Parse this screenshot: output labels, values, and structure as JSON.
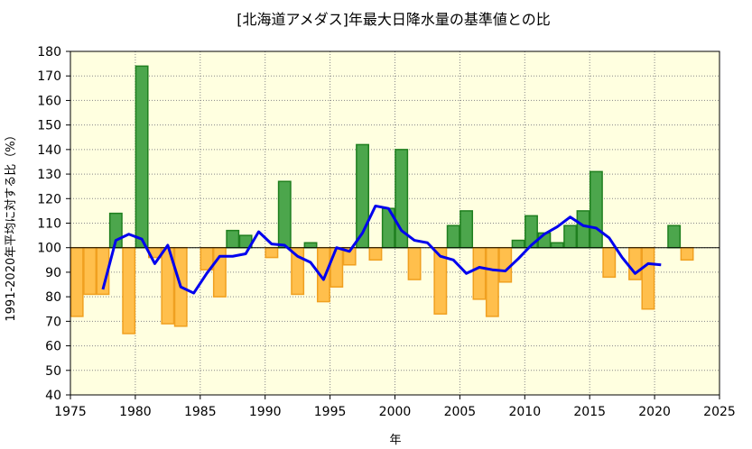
{
  "chart_data": {
    "type": "bar",
    "title": "[北海道アメダス]年最大日降水量の基準値との比",
    "xlabel": "年",
    "ylabel": "1991-2020年平均に対する比（%）",
    "xlim": [
      1975,
      2025
    ],
    "ylim": [
      40,
      180
    ],
    "baseline": 100,
    "x_ticks": [
      1975,
      1980,
      1985,
      1990,
      1995,
      2000,
      2005,
      2010,
      2015,
      2020,
      2025
    ],
    "y_ticks": [
      40,
      50,
      60,
      70,
      80,
      90,
      100,
      110,
      120,
      130,
      140,
      150,
      160,
      170,
      180
    ],
    "grid": true,
    "legend": "none",
    "colors": {
      "above": "#4ca64c",
      "above_edge": "#1f7f1f",
      "below": "#ffbf4c",
      "below_edge": "#f0a020",
      "line": "#0000ee",
      "plot_bg": "#ffffe0"
    },
    "bars": {
      "x": [
        1976,
        1977,
        1978,
        1979,
        1980,
        1981,
        1982,
        1983,
        1984,
        1985,
        1986,
        1987,
        1988,
        1989,
        1990,
        1991,
        1992,
        1993,
        1994,
        1995,
        1996,
        1997,
        1998,
        1999,
        2000,
        2001,
        2002,
        2003,
        2004,
        2005,
        2006,
        2007,
        2008,
        2009,
        2010,
        2011,
        2012,
        2013,
        2014,
        2015,
        2016,
        2017,
        2018,
        2019,
        2020,
        2021,
        2022,
        2023
      ],
      "values": [
        72,
        81,
        81,
        114,
        65,
        174,
        96,
        69,
        68,
        100,
        91,
        80,
        107,
        105,
        100,
        96,
        127,
        81,
        102,
        78,
        84,
        93,
        142,
        95,
        116,
        140,
        87,
        100,
        73,
        109,
        115,
        79,
        72,
        86,
        103,
        113,
        106,
        102,
        109,
        115,
        131,
        88,
        100,
        87,
        75,
        100,
        109,
        95
      ]
    },
    "series": [
      {
        "x": [
          1978,
          1979,
          1980,
          1981,
          1982,
          1983,
          1984,
          1985,
          1986,
          1987,
          1988,
          1989,
          1990,
          1991,
          1992,
          1993,
          1994,
          1995,
          1996,
          1997,
          1998,
          1999,
          2000,
          2001,
          2002,
          2003,
          2004,
          2005,
          2006,
          2007,
          2008,
          2009,
          2010,
          2011,
          2012,
          2013,
          2014,
          2015,
          2016,
          2017,
          2018,
          2019,
          2020,
          2021
        ],
        "values": [
          83,
          103,
          105.5,
          103.5,
          93.5,
          101,
          84,
          81.5,
          89.5,
          96.5,
          96.5,
          97.5,
          106.5,
          101.5,
          101,
          96.5,
          94,
          87,
          100,
          98.5,
          106,
          117,
          116,
          107,
          103,
          102,
          96.5,
          95,
          89.5,
          92,
          91,
          90.5,
          95.5,
          101,
          105.5,
          108.5,
          112.5,
          109,
          108,
          104,
          96,
          89.5,
          93.5,
          93
        ]
      }
    ]
  }
}
